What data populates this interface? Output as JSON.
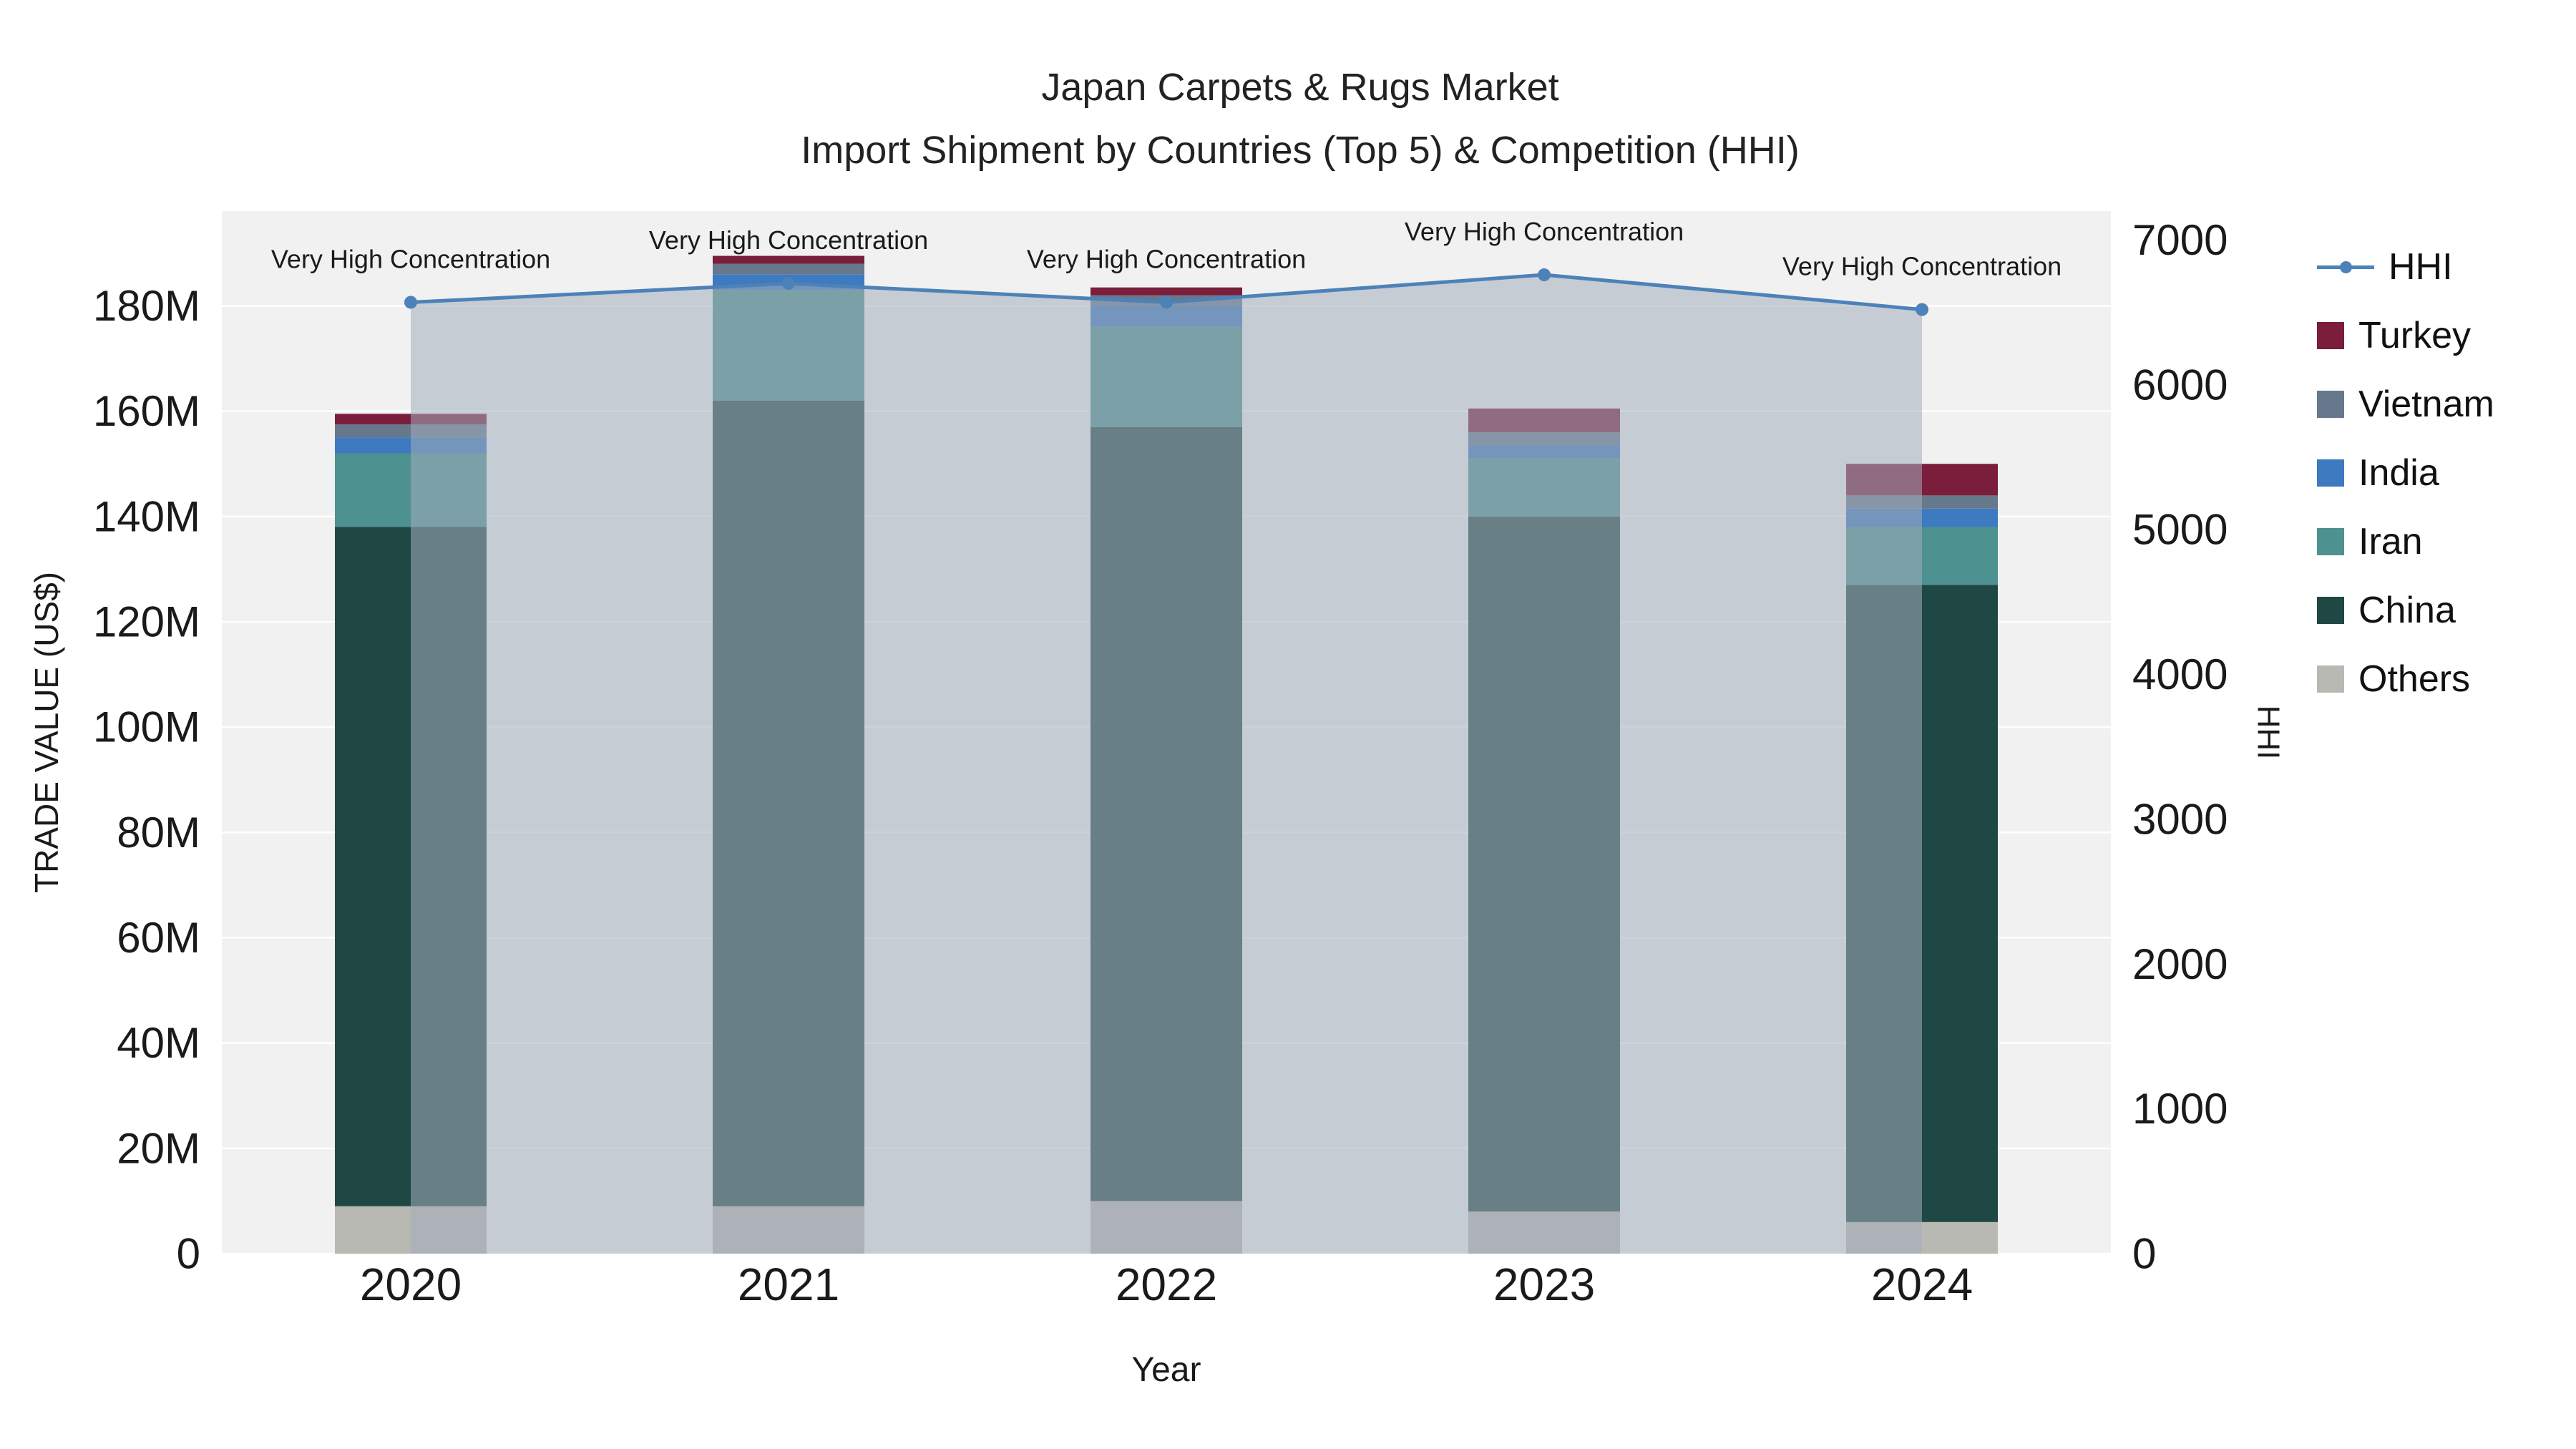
{
  "title": {
    "line1": "Japan Carpets & Rugs Market",
    "line2": "Import Shipment by Countries (Top 5) & Competition (HHI)"
  },
  "style": {
    "plot_bg": "#f1f1f1",
    "grid": "#ffffff",
    "text": "#1a1a1a"
  },
  "chart_data": {
    "type": "bar",
    "subtype": "stacked-bars-with-line",
    "categories": [
      "2020",
      "2021",
      "2022",
      "2023",
      "2024"
    ],
    "values_unit": "USD millions",
    "series": [
      {
        "name": "Others",
        "color": "#b9b9b3",
        "values": [
          9,
          9,
          10,
          8,
          6
        ]
      },
      {
        "name": "China",
        "color": "#1f4844",
        "values": [
          129,
          153,
          147,
          132,
          121
        ]
      },
      {
        "name": "Iran",
        "color": "#4e9191",
        "values": [
          14,
          21,
          19,
          11,
          11
        ]
      },
      {
        "name": "India",
        "color": "#3d7abf",
        "values": [
          3,
          3,
          4,
          2.5,
          3.5
        ]
      },
      {
        "name": "Vietnam",
        "color": "#66788c",
        "values": [
          2.5,
          2,
          2,
          2.5,
          2.5
        ]
      },
      {
        "name": "Turkey",
        "color": "#7a1e3c",
        "values": [
          2,
          1.5,
          1.5,
          4.5,
          6
        ]
      }
    ],
    "hhi": {
      "name": "HHI",
      "color": "#4d82b8",
      "area_color": "rgba(162,173,188,0.55)",
      "values": [
        6570,
        6700,
        6570,
        6760,
        6520
      ]
    },
    "annotation": "Very High Concentration",
    "legend_order": [
      "HHI",
      "Turkey",
      "Vietnam",
      "India",
      "Iran",
      "China",
      "Others"
    ],
    "y_left": {
      "title": "TRADE VALUE (US$)",
      "tick_labels": [
        "0",
        "20M",
        "40M",
        "60M",
        "80M",
        "100M",
        "120M",
        "140M",
        "160M",
        "180M"
      ],
      "tick_values": [
        0,
        20,
        40,
        60,
        80,
        100,
        120,
        140,
        160,
        180
      ],
      "max": 198
    },
    "y_right": {
      "title": "HHI",
      "tick_labels": [
        "0",
        "1000",
        "2000",
        "3000",
        "4000",
        "5000",
        "6000",
        "7000"
      ],
      "tick_values": [
        0,
        1000,
        2000,
        3000,
        4000,
        5000,
        6000,
        7000
      ],
      "max": 7200
    },
    "x": {
      "title": "Year"
    }
  }
}
